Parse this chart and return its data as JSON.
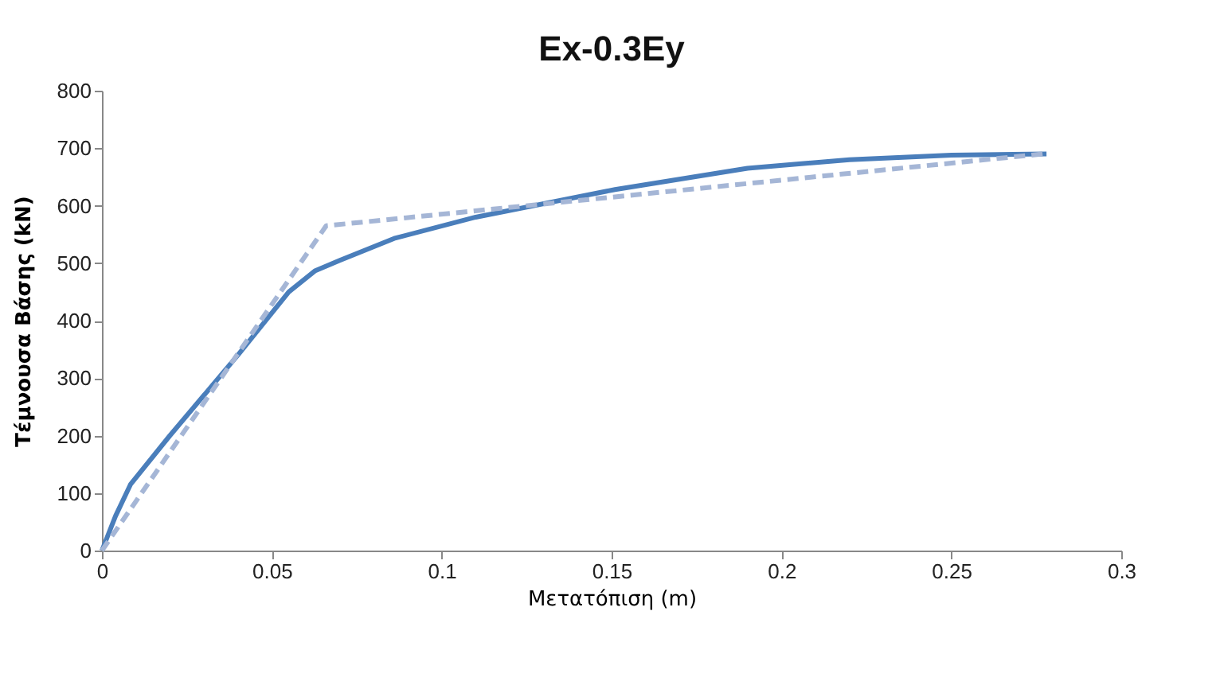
{
  "chart_data": {
    "type": "line",
    "title": "Ex-0.3Ey",
    "xlabel": "Μετατόπιση (m)",
    "ylabel": "Τέμνουσα Βάσης (kN)",
    "xlim": [
      0,
      0.3
    ],
    "xticks": [
      0,
      0.05,
      0.1,
      0.15,
      0.2,
      0.25,
      0.3
    ],
    "ylim": [
      0,
      800
    ],
    "yticks": [
      0,
      100,
      200,
      300,
      400,
      500,
      600,
      700,
      800
    ],
    "grid": false,
    "series": [
      {
        "color": "#4a7ebb",
        "line_style": "solid",
        "x": [
          0,
          0.004,
          0.0084,
          0.02,
          0.04,
          0.055,
          0.0628,
          0.07,
          0.086,
          0.11,
          0.151,
          0.19,
          0.22,
          0.25,
          0.278
        ],
        "values": [
          0,
          60,
          115,
          200,
          340,
          450,
          487,
          505,
          543,
          580,
          628,
          665,
          680,
          688,
          690
        ]
      },
      {
        "color": "#a5b6d6",
        "line_style": "dashed",
        "x": [
          0,
          0.066,
          0.277
        ],
        "values": [
          0,
          565,
          690
        ]
      }
    ]
  }
}
